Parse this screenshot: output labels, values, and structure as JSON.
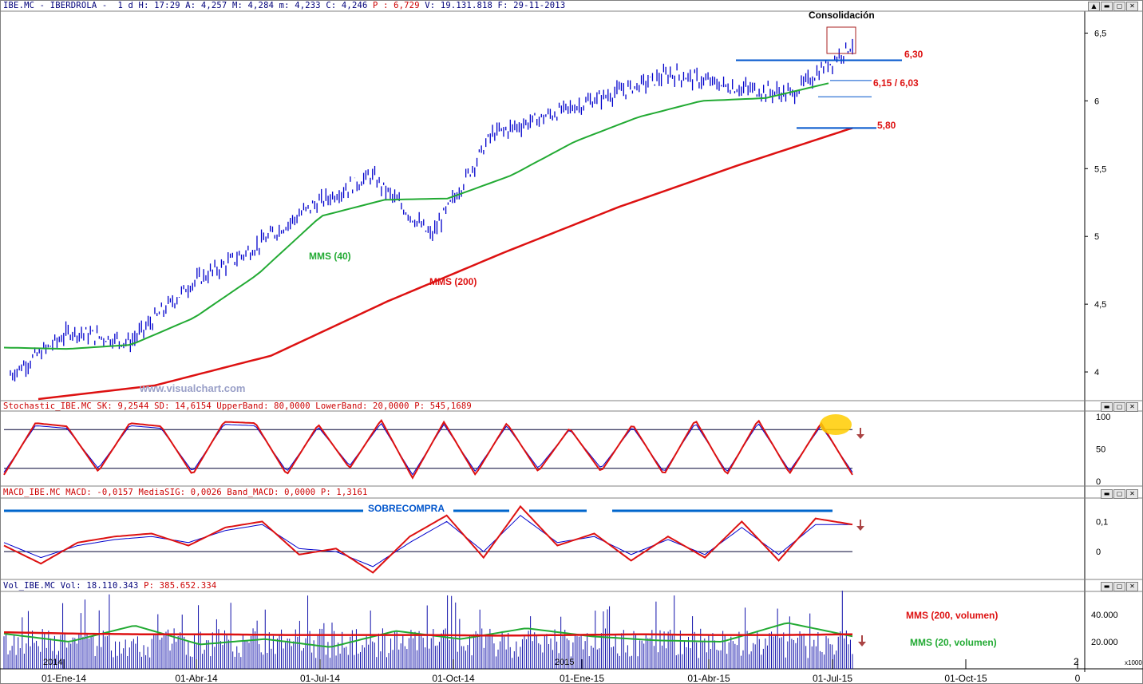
{
  "headers": {
    "price": {
      "prefix": "IBE.MC - IBERDROLA -  1 d H: 17:29 A: 4,257 M: 4,284 m: 4,233 C: 4,246 ",
      "p": "P : 6,729",
      "suffix": " V: 19.131.818 F: 29-11-2013"
    },
    "stoch": {
      "prefix": "Stochastic_IBE.MC SK: 9,2544 SD: 14,6154 UpperBand: 80,0000 LowerBand: 20,0000 ",
      "p": "P: 545,1689"
    },
    "macd": {
      "prefix": "MACD_IBE.MC MACD: -0,0157 MediaSIG: 0,0026 Band_MACD: 0,0000 ",
      "p": "P: 1,3161"
    },
    "vol": {
      "prefix": "Vol_IBE.MC Vol: 18.110.343 ",
      "p": "P: 385.652.334"
    }
  },
  "window_buttons": [
    "▲",
    "▬",
    "▢",
    "✕"
  ],
  "annotations": {
    "consolidacion": "Consolidación",
    "level_630": "6,30",
    "level_615_603": "6,15 / 6,03",
    "level_580": "5,80",
    "mms40": "MMS (40)",
    "mms200": "MMS (200)",
    "watermark": "www.visualchart.com",
    "sobrecompra": "SOBRECOMPRA",
    "vol_mms200": "MMS (200, volumen)",
    "vol_mms20": "MMS (20, volumen)",
    "year_2014": "2014",
    "year_2015": "2015",
    "x1000": "x1000",
    "corner_2": "2"
  },
  "colors": {
    "price": "#0000cc",
    "mms40": "#22aa33",
    "mms200": "#dd1111",
    "oscillator": "#dd1111",
    "signal": "#0000cc",
    "level_lines": "#0055cc",
    "sobrecompra": "#0066cc",
    "highlight": "#ffcc00",
    "arrow": "#aa4444",
    "axis_text": "#000000"
  },
  "chart_data": {
    "type": "stock-chart",
    "instrument": "IBE.MC - IBERDROLA",
    "x_axis": {
      "labels": [
        "01-Ene-14",
        "01-Abr-14",
        "01-Jul-14",
        "01-Oct-14",
        "01-Ene-15",
        "01-Abr-15",
        "01-Jul-15",
        "01-Oct-15",
        "0"
      ]
    },
    "price_panel": {
      "y_ticks": [
        "6,5",
        "6",
        "5,5",
        "5",
        "4,5",
        "4"
      ],
      "y_tick_values": [
        6.5,
        6.0,
        5.5,
        5.0,
        4.5,
        4.0
      ],
      "ylim": [
        3.8,
        6.65
      ],
      "series": [
        {
          "label": "price",
          "type": "line",
          "x": [
            "Dic-13",
            "01-Ene-14",
            "Feb-14",
            "01-Abr-14",
            "May-14",
            "01-Jul-14",
            "Ago-14",
            "01-Oct-14",
            "Nov-14",
            "01-Ene-15",
            "Feb-15",
            "01-Abr-15",
            "May-15",
            "01-Jul-15",
            "Jul-15"
          ],
          "y": [
            3.98,
            4.3,
            4.22,
            4.65,
            4.9,
            5.22,
            5.45,
            5.0,
            5.75,
            5.9,
            6.05,
            6.2,
            6.1,
            6.05,
            6.42
          ]
        },
        {
          "label": "MMS (40)",
          "type": "line",
          "x": [
            "Dic-13",
            "01-Ene-14",
            "Feb-14",
            "01-Abr-14",
            "May-14",
            "01-Jul-14",
            "Ago-14",
            "01-Oct-14",
            "Nov-14",
            "01-Ene-15",
            "Feb-15",
            "01-Abr-15",
            "May-15",
            "01-Jul-15"
          ],
          "y": [
            4.18,
            4.17,
            4.2,
            4.4,
            4.72,
            5.15,
            5.27,
            5.28,
            5.45,
            5.7,
            5.88,
            6.0,
            6.02,
            6.13
          ]
        },
        {
          "label": "MMS (200)",
          "type": "line",
          "x": [
            "Dic-13",
            "01-Ene-14",
            "01-Abr-14",
            "01-Jul-14",
            "01-Oct-14",
            "01-Ene-15",
            "01-Abr-15",
            "01-Jul-15"
          ],
          "y": [
            3.8,
            3.9,
            4.12,
            4.52,
            4.88,
            5.22,
            5.52,
            5.8
          ]
        }
      ],
      "levels": [
        6.3,
        6.15,
        6.03,
        5.8
      ]
    },
    "stochastic_panel": {
      "y_ticks": [
        "100",
        "50",
        "0"
      ],
      "bands": [
        80,
        20
      ],
      "ylim": [
        0,
        100
      ],
      "series": [
        {
          "label": "SK",
          "values": [
            10,
            90,
            85,
            15,
            90,
            85,
            10,
            92,
            90,
            10,
            88,
            20,
            95,
            5,
            92,
            10,
            90,
            15,
            82,
            15,
            88,
            10,
            95,
            10,
            95,
            12,
            90,
            10
          ]
        },
        {
          "label": "SD",
          "values": [
            14,
            86,
            82,
            20,
            86,
            82,
            15,
            88,
            86,
            15,
            84,
            24,
            90,
            10,
            88,
            15,
            86,
            20,
            80,
            20,
            84,
            14,
            90,
            14,
            90,
            16,
            86,
            14
          ]
        }
      ]
    },
    "macd_panel": {
      "y_ticks": [
        "0,1",
        "0"
      ],
      "y_tick_values": [
        0.1,
        0
      ],
      "ylim": [
        -0.09,
        0.17
      ],
      "series": [
        {
          "label": "MACD",
          "values": [
            0.02,
            -0.04,
            0.03,
            0.05,
            0.06,
            0.02,
            0.08,
            0.1,
            -0.01,
            0.01,
            -0.07,
            0.05,
            0.12,
            -0.02,
            0.15,
            0.02,
            0.06,
            -0.03,
            0.05,
            -0.02,
            0.1,
            -0.03,
            0.11,
            0.09
          ]
        },
        {
          "label": "MediaSIG",
          "values": [
            0.03,
            -0.02,
            0.02,
            0.04,
            0.05,
            0.03,
            0.07,
            0.09,
            0.01,
            0.0,
            -0.05,
            0.03,
            0.1,
            0.0,
            0.12,
            0.03,
            0.05,
            -0.01,
            0.04,
            -0.01,
            0.08,
            -0.01,
            0.09,
            0.09
          ]
        }
      ]
    },
    "volume_panel": {
      "y_ticks": [
        "40.000",
        "20.000"
      ],
      "y_tick_values": [
        40000,
        20000
      ],
      "unit": "x1000",
      "ylim": [
        0,
        56000
      ],
      "series": [
        {
          "label": "MMS (200, volumen)",
          "values": [
            27000,
            26000,
            25500,
            25500,
            25000,
            25000,
            25000,
            24500,
            25000,
            25500,
            25000,
            25000,
            25500
          ]
        },
        {
          "label": "MMS (20, volumen)",
          "values": [
            26000,
            20000,
            32000,
            18000,
            22000,
            16000,
            28000,
            22000,
            30000,
            24000,
            21000,
            20000,
            34000,
            24000
          ]
        }
      ]
    }
  }
}
